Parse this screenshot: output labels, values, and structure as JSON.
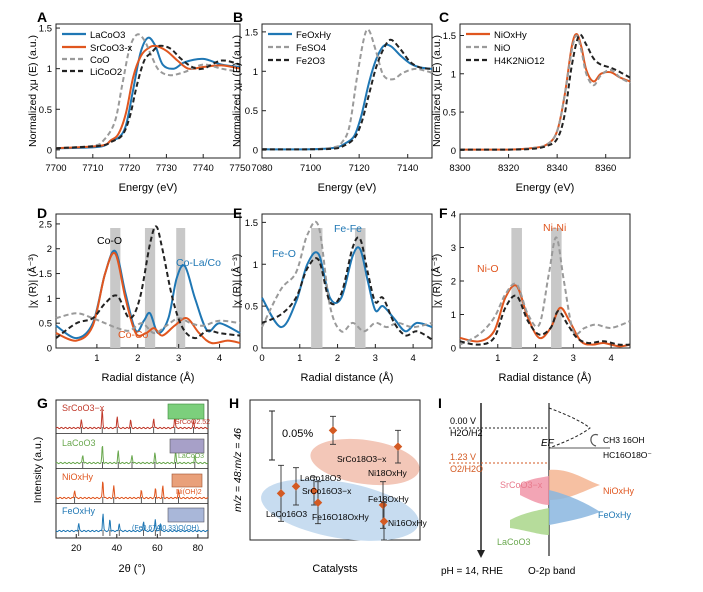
{
  "colors": {
    "blue": "#1f77b4",
    "orange": "#e0561f",
    "gray": "#9a9a9a",
    "black": "#222222",
    "gray_bar": "#c8c8c8",
    "pink_fill": "#f3c7b8",
    "blue_fill": "#c7dcf0",
    "green": "#8ec46a",
    "lightblue": "#8ab6df",
    "peach": "#f3b38a",
    "red_dot": "#d35a23"
  },
  "chart_data": [
    {
      "id": "A",
      "type": "line",
      "panel_label": "A",
      "xlabel": "Energy (eV)",
      "ylabel": "Normalized χμ (E) (a.u.)",
      "xlim": [
        7700,
        7750
      ],
      "ylim": [
        -0.1,
        1.55
      ],
      "xticks": [
        "7700",
        "7710",
        "7720",
        "7730",
        "7740",
        "7750"
      ],
      "yticks": [
        "0",
        "0.5",
        "1",
        "1.5"
      ],
      "legend": [
        "LaCoO3",
        "SrCoO3-x",
        "CoO",
        "LiCoO2"
      ],
      "series": [
        {
          "name": "LaCoO3",
          "style": "blue",
          "x": [
            7700,
            7712,
            7715,
            7717,
            7719,
            7721,
            7723,
            7725,
            7727,
            7729,
            7732,
            7735,
            7740,
            7745,
            7750
          ],
          "y": [
            0.02,
            0.04,
            0.12,
            0.15,
            0.3,
            0.75,
            1.2,
            1.38,
            1.28,
            1.05,
            1.0,
            1.08,
            1.12,
            1.05,
            1.02
          ]
        },
        {
          "name": "SrCoO3-x",
          "style": "orange",
          "x": [
            7700,
            7712,
            7715,
            7717,
            7719,
            7721,
            7723,
            7725,
            7727,
            7730,
            7733,
            7736,
            7740,
            7745,
            7750
          ],
          "y": [
            0.02,
            0.05,
            0.12,
            0.2,
            0.45,
            0.9,
            1.15,
            1.25,
            1.28,
            1.22,
            1.1,
            1.0,
            1.02,
            1.04,
            1.0
          ]
        },
        {
          "name": "CoO",
          "style": "gray",
          "x": [
            7700,
            7710,
            7713,
            7716,
            7718,
            7720,
            7722,
            7724,
            7726,
            7728,
            7731,
            7735,
            7740,
            7745,
            7750
          ],
          "y": [
            0.02,
            0.05,
            0.12,
            0.35,
            0.8,
            1.25,
            1.42,
            1.35,
            1.15,
            0.98,
            0.92,
            0.96,
            1.05,
            1.0,
            0.96
          ]
        },
        {
          "name": "LiCoO2",
          "style": "black",
          "x": [
            7700,
            7712,
            7715,
            7718,
            7720,
            7722,
            7724,
            7726,
            7728,
            7731,
            7734,
            7737,
            7740,
            7745,
            7750
          ],
          "y": [
            0.02,
            0.05,
            0.1,
            0.18,
            0.4,
            0.8,
            1.1,
            1.2,
            1.28,
            1.25,
            1.12,
            1.02,
            1.0,
            1.1,
            1.05
          ]
        }
      ]
    },
    {
      "id": "B",
      "type": "line",
      "panel_label": "B",
      "xlabel": "Energy (eV)",
      "ylabel": "Normalized χμ (E) (a.u.)",
      "xlim": [
        7080,
        7150
      ],
      "ylim": [
        -0.1,
        1.6
      ],
      "xticks": [
        "7080",
        "7100",
        "7120",
        "7140"
      ],
      "yticks": [
        "0",
        "0.5",
        "1",
        "1.5"
      ],
      "legend": [
        "FeOxHy",
        "FeSO4",
        "Fe2O3"
      ],
      "series": [
        {
          "name": "FeOxHy",
          "style": "blue",
          "x": [
            7080,
            7100,
            7110,
            7114,
            7118,
            7121,
            7124,
            7127,
            7130,
            7133,
            7137,
            7141,
            7145,
            7150
          ],
          "y": [
            0.01,
            0.01,
            0.03,
            0.08,
            0.18,
            0.45,
            0.85,
            1.15,
            1.32,
            1.32,
            1.2,
            1.1,
            1.05,
            1.03
          ]
        },
        {
          "name": "FeSO4",
          "style": "gray",
          "x": [
            7080,
            7100,
            7110,
            7113,
            7116,
            7119,
            7122,
            7124,
            7127,
            7130,
            7134,
            7138,
            7143,
            7148,
            7150
          ],
          "y": [
            0.01,
            0.01,
            0.04,
            0.1,
            0.3,
            0.9,
            1.42,
            1.52,
            1.25,
            0.95,
            0.9,
            0.98,
            1.03,
            1.0,
            0.98
          ]
        },
        {
          "name": "Fe2O3",
          "style": "black",
          "x": [
            7080,
            7100,
            7110,
            7114,
            7118,
            7121,
            7124,
            7127,
            7130,
            7133,
            7137,
            7141,
            7145,
            7150
          ],
          "y": [
            0.01,
            0.01,
            0.02,
            0.06,
            0.15,
            0.35,
            0.7,
            1.05,
            1.28,
            1.4,
            1.28,
            1.12,
            1.05,
            1.03
          ]
        }
      ]
    },
    {
      "id": "C",
      "type": "line",
      "panel_label": "C",
      "xlabel": "Energy (eV)",
      "ylabel": "Normalized χμ (E) (a.u.)",
      "xlim": [
        8300,
        8370
      ],
      "ylim": [
        -0.1,
        1.65
      ],
      "xticks": [
        "8300",
        "8320",
        "8340",
        "8360"
      ],
      "yticks": [
        "0",
        "0.5",
        "1",
        "1.5"
      ],
      "legend": [
        "NiOxHy",
        "NiO",
        "H4K2NiO12"
      ],
      "series": [
        {
          "name": "NiOxHy",
          "style": "orange",
          "x": [
            8300,
            8320,
            8330,
            8336,
            8340,
            8343,
            8346,
            8348,
            8350,
            8352,
            8355,
            8358,
            8362,
            8366,
            8370
          ],
          "y": [
            0.01,
            0.01,
            0.03,
            0.08,
            0.25,
            0.7,
            1.35,
            1.52,
            1.35,
            1.05,
            0.9,
            1.0,
            1.02,
            0.95,
            0.9
          ]
        },
        {
          "name": "NiO",
          "style": "gray",
          "x": [
            8300,
            8320,
            8330,
            8336,
            8340,
            8343,
            8346,
            8348,
            8350,
            8352,
            8355,
            8358,
            8362,
            8366,
            8370
          ],
          "y": [
            0.01,
            0.01,
            0.03,
            0.08,
            0.25,
            0.7,
            1.3,
            1.5,
            1.3,
            1.0,
            0.85,
            0.98,
            1.05,
            0.95,
            0.88
          ]
        },
        {
          "name": "H4K2NiO12",
          "style": "black",
          "x": [
            8300,
            8320,
            8330,
            8336,
            8340,
            8343,
            8346,
            8349,
            8352,
            8355,
            8358,
            8362,
            8366,
            8370
          ],
          "y": [
            0.01,
            0.01,
            0.02,
            0.06,
            0.15,
            0.45,
            1.1,
            1.5,
            1.38,
            1.2,
            1.12,
            1.08,
            1.02,
            0.95
          ]
        }
      ]
    },
    {
      "id": "D",
      "type": "line",
      "panel_label": "D",
      "xlabel": "Radial distance (Å)",
      "ylabel": "|χ (R)| (Å⁻³)",
      "xlim": [
        0,
        4.5
      ],
      "ylim": [
        0,
        2.7
      ],
      "xticks": [
        "1",
        "2",
        "3",
        "4"
      ],
      "yticks": [
        "0",
        "0.5",
        "1",
        "1.5",
        "2",
        "2.5"
      ],
      "annotations": [
        "Co-O",
        "Co-La/Co",
        "Co-Co"
      ],
      "bars": [
        {
          "x": 1.45,
          "w": 0.25
        },
        {
          "x": 2.3,
          "w": 0.25
        },
        {
          "x": 3.05,
          "w": 0.22
        }
      ],
      "series": [
        {
          "name": "LaCoO3",
          "style": "blue",
          "x": [
            0,
            0.5,
            0.9,
            1.2,
            1.45,
            1.7,
            1.95,
            2.15,
            2.3,
            2.5,
            2.75,
            2.95,
            3.15,
            3.4,
            3.7,
            4.0,
            4.5
          ],
          "y": [
            0.45,
            0.2,
            0.5,
            1.5,
            1.95,
            1.1,
            0.35,
            0.55,
            0.7,
            0.3,
            0.6,
            1.4,
            1.65,
            1.0,
            0.35,
            0.5,
            0.3
          ]
        },
        {
          "name": "SrCoO3-x",
          "style": "orange",
          "x": [
            0,
            0.5,
            0.9,
            1.2,
            1.45,
            1.7,
            1.95,
            2.2,
            2.4,
            2.6,
            2.9,
            3.2,
            3.5,
            3.8,
            4.2,
            4.5
          ],
          "y": [
            0.3,
            0.15,
            0.45,
            1.5,
            1.9,
            1.0,
            0.3,
            0.3,
            0.4,
            0.25,
            0.45,
            0.6,
            0.3,
            0.1,
            0.15,
            0.1
          ]
        },
        {
          "name": "CoO",
          "style": "gray",
          "x": [
            0,
            0.5,
            0.9,
            1.2,
            1.5,
            1.8,
            2.1,
            2.4,
            2.7,
            3.0,
            3.3,
            3.6,
            4.0,
            4.5
          ],
          "y": [
            0.6,
            0.7,
            0.6,
            0.5,
            0.4,
            0.35,
            0.5,
            0.3,
            0.45,
            0.6,
            0.5,
            0.45,
            0.55,
            0.5
          ]
        },
        {
          "name": "LiCoO2",
          "style": "black",
          "x": [
            0,
            0.5,
            0.9,
            1.2,
            1.5,
            1.8,
            2.05,
            2.3,
            2.45,
            2.6,
            2.85,
            3.1,
            3.4,
            3.7,
            4.0,
            4.5
          ],
          "y": [
            0.2,
            0.5,
            0.6,
            0.9,
            1.05,
            0.6,
            1.0,
            2.1,
            2.45,
            2.0,
            1.0,
            0.4,
            0.2,
            0.35,
            0.3,
            0.25
          ]
        }
      ]
    },
    {
      "id": "E",
      "type": "line",
      "panel_label": "E",
      "xlabel": "Radial distance (Å)",
      "ylabel": "|χ (R)| (Å⁻³)",
      "xlim": [
        0,
        4.5
      ],
      "ylim": [
        0,
        1.6
      ],
      "xticks": [
        "0",
        "1",
        "2",
        "3",
        "4"
      ],
      "yticks": [
        "0",
        "0.5",
        "1",
        "1.5"
      ],
      "annotations": [
        "Fe-O",
        "Fe-Fe"
      ],
      "bars": [
        {
          "x": 1.45,
          "w": 0.3
        },
        {
          "x": 2.6,
          "w": 0.28
        }
      ],
      "series": [
        {
          "name": "FeOxHy",
          "style": "blue",
          "x": [
            0,
            0.5,
            0.9,
            1.2,
            1.5,
            1.8,
            2.1,
            2.4,
            2.6,
            2.8,
            3.0,
            3.2,
            3.5,
            3.8,
            4.1,
            4.5
          ],
          "y": [
            0.6,
            0.25,
            0.55,
            1.0,
            1.12,
            0.6,
            0.6,
            1.1,
            1.18,
            0.8,
            0.45,
            0.5,
            0.35,
            0.2,
            0.3,
            0.25
          ]
        },
        {
          "name": "FeSO4",
          "style": "gray",
          "x": [
            0,
            0.5,
            0.9,
            1.2,
            1.5,
            1.8,
            2.1,
            2.4,
            2.7,
            3.0,
            3.3,
            3.6,
            4.0,
            4.5
          ],
          "y": [
            0.25,
            0.7,
            0.9,
            1.35,
            1.45,
            0.5,
            0.2,
            0.3,
            0.2,
            0.3,
            0.25,
            0.3,
            0.25,
            0.3
          ]
        },
        {
          "name": "Fe2O3",
          "style": "black",
          "x": [
            0,
            0.5,
            0.9,
            1.2,
            1.5,
            1.8,
            2.1,
            2.4,
            2.6,
            2.8,
            3.0,
            3.2,
            3.5,
            3.8,
            4.1,
            4.5
          ],
          "y": [
            0.3,
            0.4,
            0.6,
            0.95,
            1.05,
            0.55,
            0.65,
            1.2,
            1.3,
            0.9,
            0.55,
            0.6,
            0.3,
            0.15,
            0.2,
            0.1
          ]
        }
      ]
    },
    {
      "id": "F",
      "type": "line",
      "panel_label": "F",
      "xlabel": "Radial distance (Å)",
      "ylabel": "|χ (R)| (Å⁻³)",
      "xlim": [
        0,
        4.5
      ],
      "ylim": [
        0,
        4
      ],
      "xticks": [
        "1",
        "2",
        "3",
        "4"
      ],
      "yticks": [
        "0",
        "1",
        "2",
        "3",
        "4"
      ],
      "annotations": [
        "Ni-Ni",
        "Ni-O"
      ],
      "bars": [
        {
          "x": 1.5,
          "w": 0.28
        },
        {
          "x": 2.55,
          "w": 0.28
        }
      ],
      "series": [
        {
          "name": "NiOxHy",
          "style": "orange",
          "x": [
            0,
            0.5,
            0.9,
            1.2,
            1.5,
            1.8,
            2.1,
            2.4,
            2.65,
            2.9,
            3.2,
            3.5,
            3.8,
            4.2,
            4.5
          ],
          "y": [
            0.3,
            0.2,
            0.5,
            1.5,
            1.85,
            0.9,
            0.3,
            0.6,
            1.2,
            0.8,
            0.2,
            0.1,
            0.15,
            0.05,
            0.1
          ]
        },
        {
          "name": "NiO",
          "style": "gray",
          "x": [
            0,
            0.5,
            0.9,
            1.2,
            1.5,
            1.8,
            2.1,
            2.35,
            2.55,
            2.75,
            3.0,
            3.3,
            3.6,
            4.0,
            4.5
          ],
          "y": [
            0.1,
            0.4,
            0.9,
            1.6,
            1.9,
            1.0,
            0.7,
            2.2,
            3.3,
            2.0,
            0.5,
            0.6,
            0.7,
            0.6,
            0.8
          ]
        },
        {
          "name": "H4K2NiO12",
          "style": "black",
          "x": [
            0,
            0.5,
            0.9,
            1.2,
            1.5,
            1.8,
            2.1,
            2.4,
            2.6,
            2.85,
            3.1,
            3.4,
            3.8,
            4.2,
            4.5
          ],
          "y": [
            0.2,
            0.1,
            0.3,
            1.2,
            1.55,
            0.8,
            0.4,
            0.6,
            1.1,
            0.7,
            0.3,
            0.15,
            0.2,
            0.1,
            0.1
          ]
        }
      ]
    },
    {
      "id": "G",
      "type": "line",
      "panel_label": "G",
      "xlabel": "2θ (°)",
      "ylabel": "Intensity (a.u.)",
      "xlim": [
        10,
        85
      ],
      "xticks": [
        "20",
        "40",
        "60",
        "80"
      ],
      "patterns": [
        {
          "name": "SrCoO3-x",
          "style": "#c0392b",
          "ref": "SrCoO2.52"
        },
        {
          "name": "LaCoO3",
          "style": "#6aa84f",
          "ref": "LaCoO3"
        },
        {
          "name": "NiOxHy",
          "style": "#e0561f",
          "ref": "Ni(OH)2"
        },
        {
          "name": "FeOxHy",
          "style": "#1f77b4",
          "ref": "(Fe0.67Al0.33)O(OH)"
        }
      ],
      "labels": [
        "SrCoO3−x",
        "LaCoO3",
        "NiOxHy",
        "FeOxHy",
        "SrCoO2.52",
        "LaCoO3",
        "Ni(OH)2",
        "(Fe0.67Al0.33)O(OH)"
      ]
    },
    {
      "id": "H",
      "type": "scatter",
      "panel_label": "H",
      "xlabel": "Catalysts",
      "ylabel": "m/z = 48:m/z = 46",
      "ylim": [
        0,
        0.06
      ],
      "scale_label": "0.05%",
      "points": [
        {
          "label": "LaCo16O3",
          "value": 0.02,
          "err": 0.012
        },
        {
          "label": "LaCo18O3",
          "value": 0.023,
          "err": 0.008
        },
        {
          "label": "SrCo16O3−x",
          "value": 0.021,
          "err": 0.006
        },
        {
          "label": "Fe16O18OxHy",
          "value": 0.016,
          "err": 0.009
        },
        {
          "label": "SrCo18O3−x",
          "value": 0.047,
          "err": 0.006
        },
        {
          "label": "Ni18OxHy",
          "value": 0.04,
          "err": 0.007
        },
        {
          "label": "Fe18OxHy",
          "value": 0.015,
          "err": 0.01
        },
        {
          "label": "Ni16OxHy",
          "value": 0.008,
          "err": 0.008
        }
      ]
    },
    {
      "id": "I",
      "type": "diagram",
      "panel_label": "I",
      "labels": {
        "v0": "0.00 V",
        "v0b": "H2O/H2",
        "v1": "1.23 V",
        "v1b": "O2/H2O",
        "ef": "EF",
        "ch3": "CH3 16OH",
        "hc": "HC16O18O⁻",
        "sr": "SrCoO3−x",
        "ni": "NiOxHy",
        "fe": "FeOxHy",
        "la": "LaCoO3",
        "bottom_left": "pH = 14, RHE",
        "bottom_right": "O-2p band"
      }
    }
  ]
}
